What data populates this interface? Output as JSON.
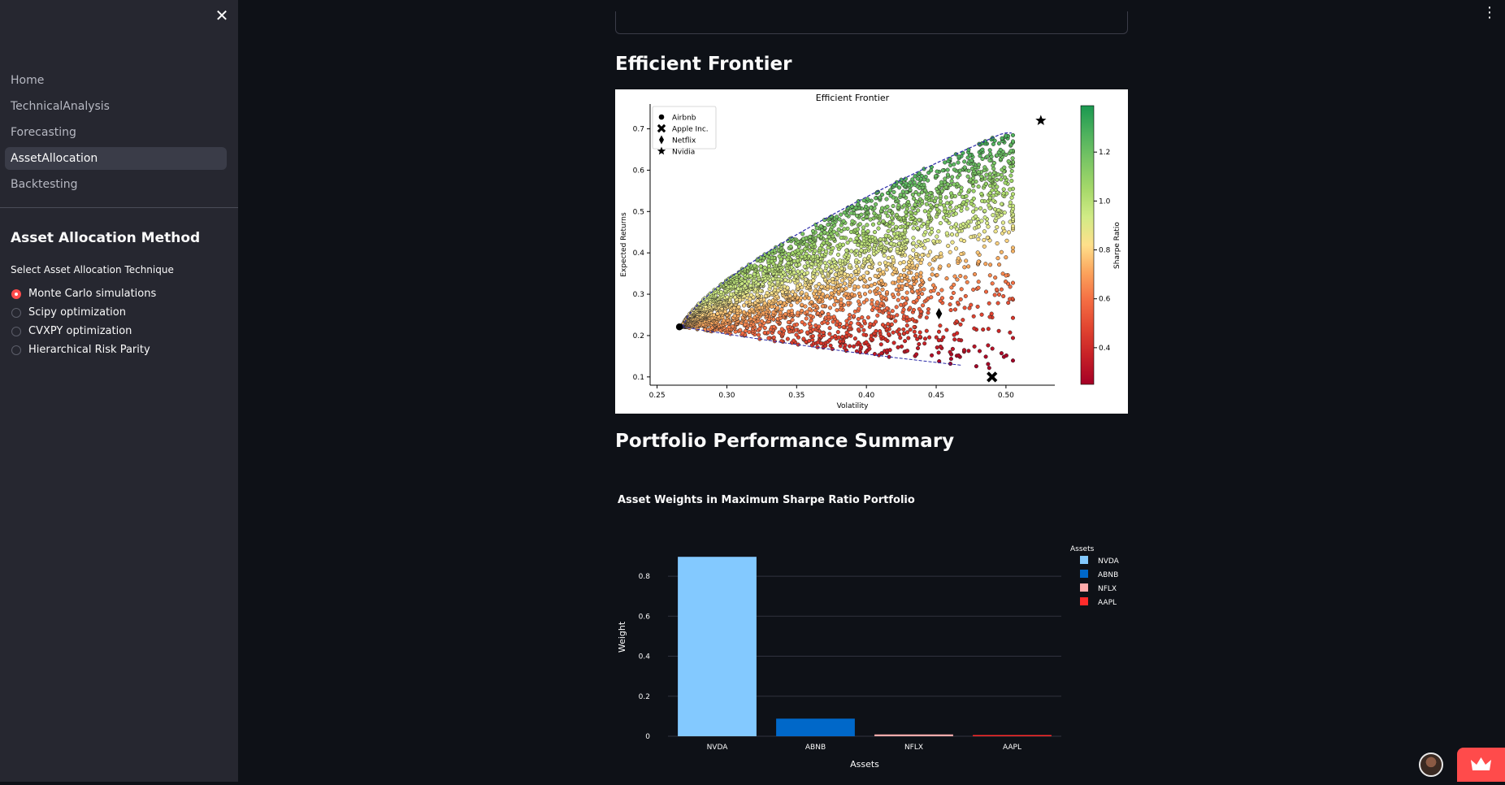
{
  "sidebar": {
    "close_glyph": "✕",
    "nav": [
      "Home",
      "TechnicalAnalysis",
      "Forecasting",
      "AssetAllocation",
      "Backtesting"
    ],
    "active_nav": "AssetAllocation",
    "method_title": "Asset Allocation Method",
    "technique_label": "Select Asset Allocation Technique",
    "options": [
      "Monte Carlo simulations",
      "Scipy optimization",
      "CVXPY optimization",
      "Hierarchical Risk Parity"
    ],
    "selected_option": "Monte Carlo simulations"
  },
  "main": {
    "menu_glyph": "⋮",
    "sections": {
      "efficient_frontier": "Efficient Frontier",
      "portfolio_summary": "Portfolio Performance Summary"
    }
  },
  "colors": {
    "accent": "#ff4b4b",
    "bar_nvda": "#83c9ff",
    "bar_abnb": "#0068c9",
    "bar_nflx": "#ffabab",
    "bar_aapl": "#ff2b2b"
  },
  "icons": {
    "close": "close-icon",
    "menu": "more-vert-icon",
    "crown": "crown-icon",
    "avatar": "avatar"
  },
  "chart_data": [
    {
      "type": "scatter",
      "title": "Efficient Frontier",
      "xlabel": "Volatility",
      "ylabel": "Expected Returns",
      "colorbar_label": "Sharpe Ratio",
      "xlim": [
        0.245,
        0.535
      ],
      "ylim": [
        0.08,
        0.76
      ],
      "xticks": [
        "0.25",
        "0.30",
        "0.35",
        "0.40",
        "0.45",
        "0.50"
      ],
      "yticks": [
        "0.1",
        "0.2",
        "0.3",
        "0.4",
        "0.5",
        "0.6",
        "0.7"
      ],
      "colorbar_ticks": [
        "0.4",
        "0.6",
        "0.8",
        "1.0",
        "1.2"
      ],
      "colorbar_range": [
        0.25,
        1.39
      ],
      "legend_position": "top-left",
      "assets": [
        {
          "name": "Airbnb",
          "marker": "circle",
          "x": 0.266,
          "y": 0.221
        },
        {
          "name": "Apple Inc.",
          "marker": "x",
          "x": 0.49,
          "y": 0.1
        },
        {
          "name": "Netflix",
          "marker": "diamond",
          "x": 0.452,
          "y": 0.253
        },
        {
          "name": "Nvidia",
          "marker": "star",
          "x": 0.525,
          "y": 0.72
        }
      ],
      "simulated_portfolios": "thousands of random-weight portfolios colored by Sharpe ratio"
    },
    {
      "type": "bar",
      "title": "Asset Weights in Maximum Sharpe Ratio Portfolio",
      "xlabel": "Assets",
      "ylabel": "Weight",
      "legend_title": "Assets",
      "legend_position": "top-right",
      "categories": [
        "NVDA",
        "ABNB",
        "NFLX",
        "AAPL"
      ],
      "values": [
        0.897,
        0.088,
        0.009,
        0.006
      ],
      "ylim": [
        0,
        0.91
      ],
      "yticks": [
        "0",
        "0.2",
        "0.4",
        "0.6",
        "0.8"
      ]
    }
  ]
}
